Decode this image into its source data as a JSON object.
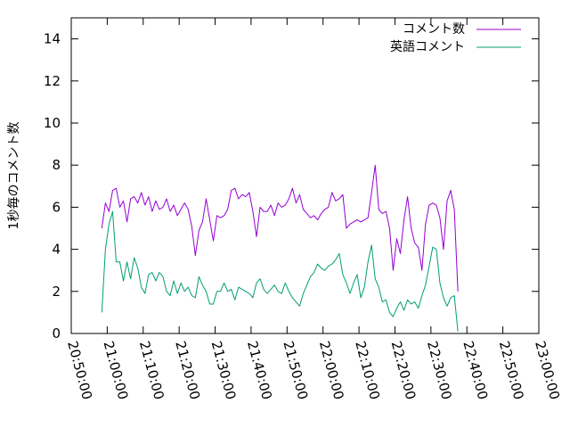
{
  "chart_data": {
    "type": "line",
    "title": "",
    "xlabel": "",
    "ylabel": "1秒毎のコメント数",
    "x_tick_labels": [
      "20:50:00",
      "21:00:00",
      "21:10:00",
      "21:20:00",
      "21:30:00",
      "21:40:00",
      "21:50:00",
      "22:00:00",
      "22:10:00",
      "22:20:00",
      "22:30:00",
      "22:40:00",
      "22:50:00",
      "23:00:00"
    ],
    "x_range": [
      "20:50:00",
      "23:00:00"
    ],
    "x_sample_start": "20:58:30",
    "x_sample_step_seconds": 60,
    "y_ticks": [
      0,
      2,
      4,
      6,
      8,
      10,
      12,
      14
    ],
    "ylim": [
      0,
      15
    ],
    "grid": false,
    "legend_position": "top-right",
    "series": [
      {
        "name": "コメント数",
        "color": "#9400d3",
        "values": [
          5.0,
          6.2,
          5.8,
          6.8,
          6.9,
          6.0,
          6.3,
          5.3,
          6.4,
          6.5,
          6.2,
          6.7,
          6.1,
          6.5,
          5.8,
          6.3,
          5.9,
          6.0,
          6.4,
          5.8,
          6.1,
          5.6,
          5.9,
          6.2,
          5.9,
          5.1,
          3.7,
          4.9,
          5.3,
          6.4,
          5.4,
          4.4,
          5.6,
          5.5,
          5.6,
          5.9,
          6.8,
          6.9,
          6.4,
          6.6,
          6.5,
          6.7,
          5.8,
          4.6,
          6.0,
          5.8,
          5.8,
          6.1,
          5.6,
          6.2,
          6.0,
          6.1,
          6.4,
          6.9,
          6.2,
          6.6,
          5.9,
          5.7,
          5.5,
          5.6,
          5.4,
          5.7,
          5.9,
          6.0,
          6.7,
          6.3,
          6.4,
          6.6,
          5.0,
          5.2,
          5.3,
          5.4,
          5.3,
          5.4,
          5.5,
          6.7,
          8.0,
          5.9,
          5.7,
          5.8,
          5.0,
          3.0,
          4.5,
          3.8,
          5.4,
          6.5,
          5.0,
          4.3,
          4.1,
          3.0,
          5.2,
          6.1,
          6.2,
          6.1,
          5.5,
          4.0,
          6.3,
          6.8,
          5.9,
          2.0
        ]
      },
      {
        "name": "英語コメント",
        "color": "#009e73",
        "values": [
          1.0,
          4.0,
          5.2,
          5.8,
          3.4,
          3.4,
          2.5,
          3.4,
          2.6,
          3.6,
          3.1,
          2.2,
          1.9,
          2.8,
          2.9,
          2.5,
          2.9,
          2.7,
          2.0,
          1.8,
          2.5,
          1.9,
          2.4,
          2.0,
          2.2,
          1.8,
          1.7,
          2.7,
          2.3,
          2.0,
          1.4,
          1.4,
          2.0,
          2.0,
          2.4,
          2.0,
          2.1,
          1.6,
          2.2,
          2.1,
          2.0,
          1.9,
          1.7,
          2.4,
          2.6,
          2.1,
          1.9,
          2.1,
          2.3,
          2.0,
          1.9,
          2.4,
          2.0,
          1.7,
          1.5,
          1.3,
          1.9,
          2.3,
          2.7,
          2.9,
          3.3,
          3.1,
          3.0,
          3.2,
          3.3,
          3.5,
          3.8,
          2.8,
          2.4,
          1.9,
          2.4,
          2.8,
          1.7,
          2.2,
          3.4,
          4.2,
          2.6,
          2.2,
          1.5,
          1.6,
          1.0,
          0.8,
          1.2,
          1.5,
          1.1,
          1.6,
          1.4,
          1.5,
          1.2,
          1.8,
          2.3,
          3.2,
          4.1,
          4.0,
          2.4,
          1.7,
          1.3,
          1.7,
          1.8,
          0.1
        ]
      }
    ]
  }
}
